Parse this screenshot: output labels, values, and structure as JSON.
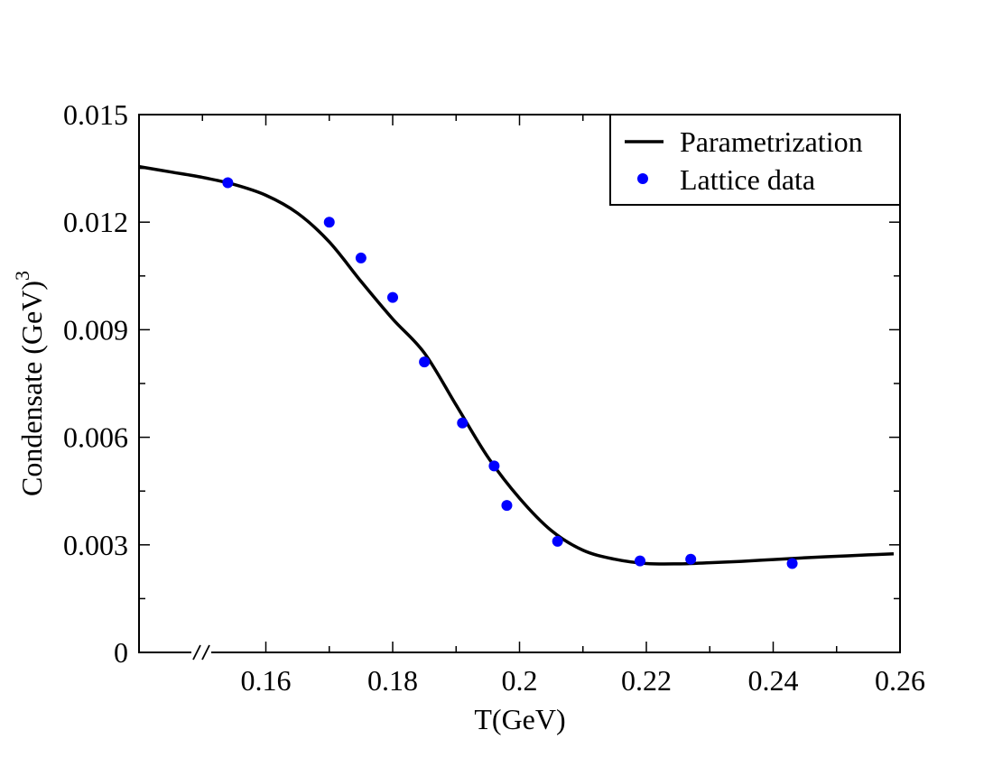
{
  "chart_data": {
    "type": "line+scatter",
    "xlabel": "T(GeV)",
    "ylabel": "Condensate (GeV)",
    "ylabel_superscript": "3",
    "xlim": [
      0.14,
      0.26
    ],
    "ylim": [
      0,
      0.015
    ],
    "x_axis_break": true,
    "x_ticks": [
      0.16,
      0.18,
      0.2,
      0.22,
      0.24,
      0.26
    ],
    "x_tick_labels": [
      "0.16",
      "0.18",
      "0.2",
      "0.22",
      "0.24",
      "0.26"
    ],
    "x_minor_ticks": [
      0.15,
      0.17,
      0.19,
      0.21,
      0.23,
      0.25
    ],
    "y_ticks": [
      0,
      0.003,
      0.006,
      0.009,
      0.012,
      0.015
    ],
    "y_tick_labels": [
      "0",
      "0.003",
      "0.006",
      "0.009",
      "0.012",
      "0.015"
    ],
    "y_minor_ticks": [
      0.0015,
      0.0045,
      0.0075,
      0.0105,
      0.0135
    ],
    "grid": false,
    "legend_position": "top-right",
    "series": [
      {
        "name": "Parametrization",
        "kind": "line",
        "color": "#000000",
        "x": [
          0.14,
          0.145,
          0.15,
          0.155,
          0.16,
          0.165,
          0.17,
          0.175,
          0.18,
          0.185,
          0.19,
          0.195,
          0.2,
          0.205,
          0.21,
          0.215,
          0.22,
          0.225,
          0.23,
          0.235,
          0.24,
          0.245,
          0.25,
          0.255,
          0.259
        ],
        "y": [
          0.01355,
          0.0134,
          0.01325,
          0.01305,
          0.01275,
          0.01225,
          0.01145,
          0.01035,
          0.0093,
          0.00835,
          0.0069,
          0.00545,
          0.0043,
          0.0034,
          0.00285,
          0.0026,
          0.00248,
          0.00247,
          0.0025,
          0.00254,
          0.00259,
          0.00264,
          0.00268,
          0.00272,
          0.00275
        ]
      },
      {
        "name": "Lattice data",
        "kind": "scatter",
        "color": "#0000ff",
        "x": [
          0.154,
          0.17,
          0.175,
          0.18,
          0.185,
          0.191,
          0.196,
          0.198,
          0.206,
          0.219,
          0.227,
          0.243
        ],
        "y": [
          0.0131,
          0.012,
          0.011,
          0.0099,
          0.0081,
          0.0064,
          0.0052,
          0.0041,
          0.0031,
          0.00255,
          0.0026,
          0.00248
        ]
      }
    ]
  }
}
